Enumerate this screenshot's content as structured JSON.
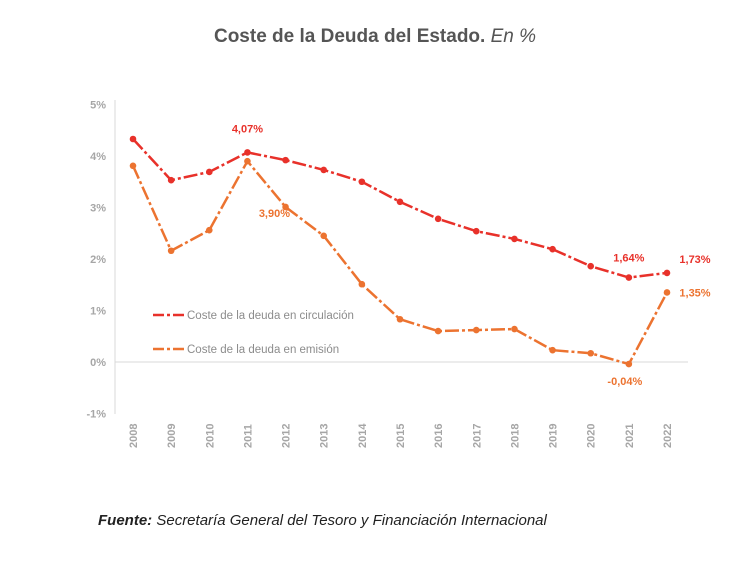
{
  "chart_data": {
    "type": "line",
    "title": "Coste de la Deuda del Estado.",
    "title_suffix": "En %",
    "categories": [
      "2008",
      "2009",
      "2010",
      "2011",
      "2012",
      "2013",
      "2014",
      "2015",
      "2016",
      "2017",
      "2018",
      "2019",
      "2020",
      "2021",
      "2022"
    ],
    "ylim": [
      -1,
      5
    ],
    "yticks": [
      "-1%",
      "0%",
      "1%",
      "2%",
      "3%",
      "4%",
      "5%"
    ],
    "grid": false,
    "legend": "center-left",
    "series": [
      {
        "name": "Coste de la deuda en circulación",
        "color": "#e8312a",
        "values": [
          4.33,
          3.53,
          3.69,
          4.07,
          3.92,
          3.73,
          3.5,
          3.11,
          2.78,
          2.54,
          2.39,
          2.19,
          1.86,
          1.64,
          1.73
        ],
        "labels": {
          "3": "4,07%",
          "13": "1,64%",
          "14": "1,73%"
        }
      },
      {
        "name": "Coste de la deuda en emisión",
        "color": "#ec7330",
        "values": [
          3.81,
          2.16,
          2.56,
          3.9,
          3.01,
          2.45,
          1.51,
          0.83,
          0.6,
          0.62,
          0.64,
          0.23,
          0.17,
          -0.04,
          1.35
        ],
        "labels": {
          "3": "3,90%",
          "13": "-0,04%",
          "14": "1,35%"
        }
      }
    ]
  },
  "source": {
    "label": "Fuente:",
    "text": "Secretaría General del Tesoro y Financiación Internacional"
  }
}
